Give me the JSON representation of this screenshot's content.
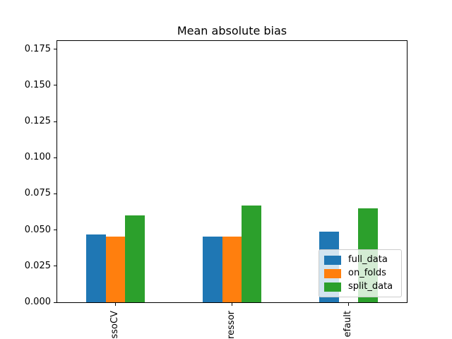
{
  "chart_data": {
    "type": "bar",
    "title": "Mean absolute bias",
    "categories": [
      "ssoCV",
      "ressor",
      "efault"
    ],
    "series": [
      {
        "name": "full_data",
        "color": "#1f77b4",
        "values": [
          0.047,
          0.0455,
          0.049
        ]
      },
      {
        "name": "on_folds",
        "color": "#ff7f0e",
        "values": [
          0.0455,
          0.0455,
          0
        ]
      },
      {
        "name": "split_data",
        "color": "#2ca02c",
        "values": [
          0.06,
          0.067,
          0.065
        ]
      }
    ],
    "y_ticks": [
      "0.000",
      "0.025",
      "0.050",
      "0.075",
      "0.100",
      "0.125",
      "0.150",
      "0.175"
    ],
    "ylim": [
      0,
      0.1812
    ],
    "xlabel": "",
    "ylabel": "",
    "grid": false,
    "legend": {
      "position": "lower right",
      "entries": [
        "full_data",
        "on_folds",
        "split_data"
      ]
    },
    "axis_color": "#000000",
    "background": "#ffffff"
  }
}
